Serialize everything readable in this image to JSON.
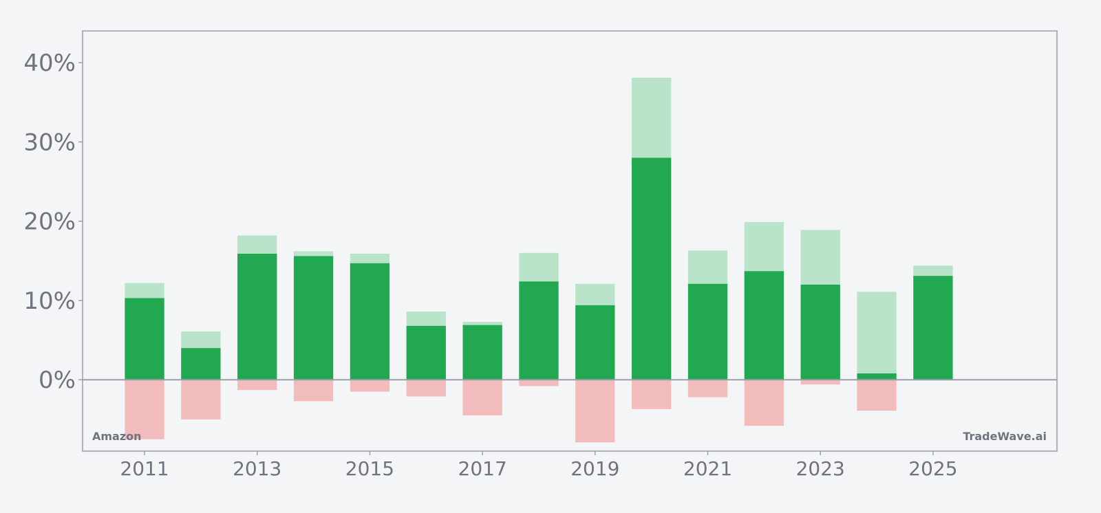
{
  "chart_data": {
    "type": "bar",
    "ylim": [
      -0.09,
      0.44
    ],
    "xlim": [
      2009.9,
      2027.2
    ],
    "grid": false,
    "y_ticks": [
      0,
      0.1,
      0.2,
      0.3,
      0.4
    ],
    "y_tick_labels": [
      "0%",
      "10%",
      "20%",
      "30%",
      "40%"
    ],
    "x_ticks": [
      2011,
      2013,
      2015,
      2017,
      2019,
      2021,
      2023,
      2025
    ],
    "x_tick_labels": [
      "2011",
      "2013",
      "2015",
      "2017",
      "2019",
      "2021",
      "2023",
      "2025"
    ],
    "x": [
      2011,
      2012,
      2013,
      2014,
      2015,
      2016,
      2017,
      2018,
      2019,
      2020,
      2021,
      2022,
      2023,
      2024,
      2025
    ],
    "series": [
      {
        "values": [
          0.103,
          0.04,
          0.159,
          0.156,
          0.147,
          0.068,
          0.069,
          0.124,
          0.094,
          0.28,
          0.121,
          0.137,
          0.12,
          0.008,
          0.131
        ]
      },
      {
        "values": [
          0.122,
          0.061,
          0.182,
          0.162,
          0.159,
          0.086,
          0.073,
          0.16,
          0.121,
          0.381,
          0.163,
          0.199,
          0.189,
          0.111,
          0.144
        ]
      },
      {
        "values": [
          -0.075,
          -0.05,
          -0.013,
          -0.027,
          -0.015,
          -0.021,
          -0.045,
          -0.008,
          -0.079,
          -0.037,
          -0.022,
          -0.058,
          -0.006,
          -0.039,
          0.0
        ]
      }
    ],
    "colors": {
      "main": "#22a851",
      "high": "#b9e4c9",
      "low": "#f3bcbc",
      "axis": "#9a9fab",
      "text": "#6e737e",
      "background": "#f4f5f7"
    },
    "annotations": {
      "left": "Amazon",
      "right": "TradeWave.ai"
    }
  }
}
